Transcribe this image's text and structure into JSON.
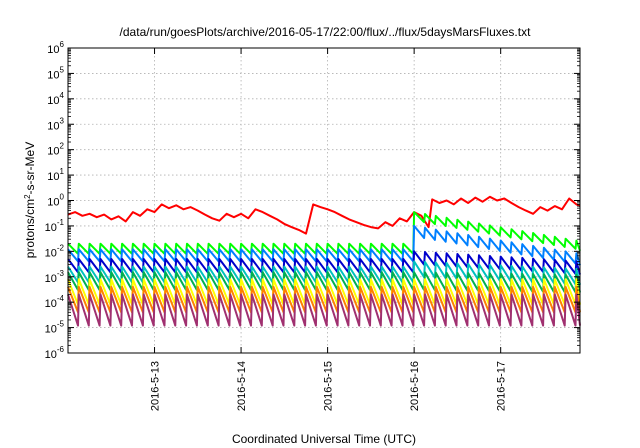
{
  "chart_data": {
    "type": "line",
    "title": "/data/run/goesPlots/archive/2016-05-17/22:00/flux/../flux/5daysMarsFluxes.txt",
    "xlabel": "Coordinated Universal Time (UTC)",
    "ylabel": {
      "prefix": "protons/cm",
      "sup": "2",
      "suffix": "-s-sr-MeV"
    },
    "xscale": "time",
    "xlim": [
      "2016-05-12 00:00",
      "2016-05-17 22:00"
    ],
    "x_ticks": [
      "2016-5-13",
      "2016-5-14",
      "2016-5-15",
      "2016-5-16",
      "2016-5-17"
    ],
    "yscale": "log",
    "ylim": [
      1e-06,
      1000000.0
    ],
    "y_ticks": [
      {
        "base": "10",
        "exp": "-6"
      },
      {
        "base": "10",
        "exp": "-5"
      },
      {
        "base": "10",
        "exp": "-4"
      },
      {
        "base": "10",
        "exp": "-3"
      },
      {
        "base": "10",
        "exp": "-2"
      },
      {
        "base": "10",
        "exp": "-1"
      },
      {
        "base": "10",
        "exp": "0"
      },
      {
        "base": "10",
        "exp": "1"
      },
      {
        "base": "10",
        "exp": "2"
      },
      {
        "base": "10",
        "exp": "3"
      },
      {
        "base": "10",
        "exp": "4"
      },
      {
        "base": "10",
        "exp": "5"
      },
      {
        "base": "10",
        "exp": "6"
      }
    ],
    "grid": true,
    "legend": "none",
    "series": [
      {
        "color": "#ff0000",
        "points": [
          [
            "2016-05-12 00:00",
            0.28
          ],
          [
            "2016-05-12 02:00",
            0.35
          ],
          [
            "2016-05-12 04:00",
            0.25
          ],
          [
            "2016-05-12 06:00",
            0.3
          ],
          [
            "2016-05-12 08:00",
            0.22
          ],
          [
            "2016-05-12 10:00",
            0.28
          ],
          [
            "2016-05-12 12:00",
            0.18
          ],
          [
            "2016-05-12 14:00",
            0.24
          ],
          [
            "2016-05-12 16:00",
            0.15
          ],
          [
            "2016-05-12 18:00",
            0.35
          ],
          [
            "2016-05-12 20:00",
            0.25
          ],
          [
            "2016-05-12 22:00",
            0.45
          ],
          [
            "2016-05-13 00:00",
            0.35
          ],
          [
            "2016-05-13 02:00",
            0.7
          ],
          [
            "2016-05-13 04:00",
            0.5
          ],
          [
            "2016-05-13 06:00",
            0.65
          ],
          [
            "2016-05-13 08:00",
            0.45
          ],
          [
            "2016-05-13 10:00",
            0.55
          ],
          [
            "2016-05-13 12:00",
            0.4
          ],
          [
            "2016-05-13 14:00",
            0.28
          ],
          [
            "2016-05-13 16:00",
            0.2
          ],
          [
            "2016-05-13 18:00",
            0.16
          ],
          [
            "2016-05-13 20:00",
            0.3
          ],
          [
            "2016-05-13 22:00",
            0.22
          ],
          [
            "2016-05-14 00:00",
            0.3
          ],
          [
            "2016-05-14 02:00",
            0.2
          ],
          [
            "2016-05-14 04:00",
            0.45
          ],
          [
            "2016-05-14 06:00",
            0.35
          ],
          [
            "2016-05-14 08:00",
            0.25
          ],
          [
            "2016-05-14 10:00",
            0.18
          ],
          [
            "2016-05-14 12:00",
            0.12
          ],
          [
            "2016-05-14 14:00",
            0.09
          ],
          [
            "2016-05-14 16:00",
            0.07
          ],
          [
            "2016-05-14 18:00",
            0.05
          ],
          [
            "2016-05-14 20:00",
            0.7
          ],
          [
            "2016-05-14 22:00",
            0.55
          ],
          [
            "2016-05-15 00:00",
            0.45
          ],
          [
            "2016-05-15 02:00",
            0.35
          ],
          [
            "2016-05-15 04:00",
            0.25
          ],
          [
            "2016-05-15 06:00",
            0.18
          ],
          [
            "2016-05-15 08:00",
            0.14
          ],
          [
            "2016-05-15 10:00",
            0.11
          ],
          [
            "2016-05-15 12:00",
            0.09
          ],
          [
            "2016-05-15 14:00",
            0.08
          ],
          [
            "2016-05-15 16:00",
            0.14
          ],
          [
            "2016-05-15 18:00",
            0.1
          ],
          [
            "2016-05-15 20:00",
            0.2
          ],
          [
            "2016-05-15 22:00",
            0.15
          ],
          [
            "2016-05-16 00:00",
            0.35
          ],
          [
            "2016-05-16 02:00",
            0.25
          ],
          [
            "2016-05-16 04:00",
            0.09
          ],
          [
            "2016-05-16 05:00",
            1.1
          ],
          [
            "2016-05-16 07:00",
            0.8
          ],
          [
            "2016-05-16 09:00",
            1.0
          ],
          [
            "2016-05-16 11:00",
            0.7
          ],
          [
            "2016-05-16 13:00",
            1.2
          ],
          [
            "2016-05-16 15:00",
            0.8
          ],
          [
            "2016-05-16 17:00",
            1.3
          ],
          [
            "2016-05-16 19:00",
            0.9
          ],
          [
            "2016-05-16 21:00",
            1.4
          ],
          [
            "2016-05-16 23:00",
            1.0
          ],
          [
            "2016-05-17 01:00",
            1.2
          ],
          [
            "2016-05-17 03:00",
            0.8
          ],
          [
            "2016-05-17 05:00",
            0.55
          ],
          [
            "2016-05-17 07:00",
            0.4
          ],
          [
            "2016-05-17 09:00",
            0.3
          ],
          [
            "2016-05-17 11:00",
            0.55
          ],
          [
            "2016-05-17 13:00",
            0.4
          ],
          [
            "2016-05-17 15:00",
            0.6
          ],
          [
            "2016-05-17 17:00",
            0.45
          ],
          [
            "2016-05-17 19:00",
            1.2
          ],
          [
            "2016-05-17 21:00",
            0.7
          ],
          [
            "2016-05-17 22:00",
            0.6
          ]
        ]
      },
      {
        "color": "#00ff00",
        "sawtooth": {
          "peak": 0.02,
          "trough": 0.008,
          "period_h": 3,
          "jump": [
            "2016-05-16 00:00",
            0.35
          ],
          "decay_to": 0.025
        }
      },
      {
        "color": "#0080ff",
        "sawtooth": {
          "peak": 0.012,
          "trough": 0.004,
          "period_h": 3,
          "jump": [
            "2016-05-16 00:00",
            0.1
          ],
          "decay_to": 0.008
        }
      },
      {
        "color": "#0000cc",
        "sawtooth": {
          "peak": 0.005,
          "trough": 0.0015,
          "period_h": 3,
          "jump": [
            "2016-05-16 00:00",
            0.01
          ],
          "decay_to": 0.004
        }
      },
      {
        "color": "#00c0c0",
        "sawtooth": {
          "peak": 0.0025,
          "trough": 0.0006,
          "period_h": 3,
          "jump": [
            "2016-05-16 00:00",
            0.004
          ],
          "decay_to": 0.002
        }
      },
      {
        "color": "#00b050",
        "sawtooth": {
          "peak": 0.0015,
          "trough": 0.0003,
          "period_h": 3,
          "jump": [
            "2016-05-16 00:00",
            0.0015
          ],
          "decay_to": 0.0012
        }
      },
      {
        "color": "#ffff00",
        "sawtooth": {
          "peak": 0.0008,
          "trough": 8e-05,
          "period_h": 3,
          "jump": [
            "2016-05-16 00:00",
            0.0008
          ],
          "decay_to": 0.0008
        }
      },
      {
        "color": "#ff8000",
        "sawtooth": {
          "peak": 0.0004,
          "trough": 4e-05,
          "period_h": 3,
          "jump": [
            "2016-05-16 00:00",
            0.0004
          ],
          "decay_to": 0.0004
        }
      },
      {
        "color": "#a03070",
        "sawtooth": {
          "peak": 0.0002,
          "trough": 1.2e-05,
          "period_h": 3,
          "jump": [
            "2016-05-16 00:00",
            0.0002
          ],
          "decay_to": 0.0002
        }
      }
    ]
  }
}
